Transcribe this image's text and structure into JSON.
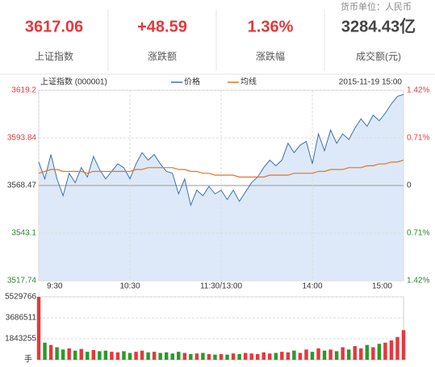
{
  "header": {
    "unit_note": "货币单位：人民币",
    "stats": [
      {
        "value": "3617.06",
        "label": "上证指数"
      },
      {
        "value": "+48.59",
        "label": "涨跌额"
      },
      {
        "value": "1.36%",
        "label": "涨跌幅"
      },
      {
        "value": "3284.43亿",
        "label": "成交额(元)"
      }
    ]
  },
  "chart_data": [
    {
      "type": "line",
      "title": "上证指数 (000001)",
      "date": "2015-11-19 15:00",
      "x": [
        0,
        4,
        8,
        12,
        16,
        20,
        24,
        28,
        32,
        36,
        40,
        44,
        48,
        52,
        56,
        60,
        64,
        68,
        72,
        76,
        80,
        84,
        88,
        92,
        96,
        100,
        104,
        108,
        112,
        116,
        120,
        124,
        128,
        132,
        136,
        140,
        144,
        148,
        152,
        156,
        160,
        164,
        168,
        172,
        176,
        180,
        184,
        188,
        192,
        196,
        200,
        204,
        208,
        212,
        216,
        220,
        224,
        228,
        232,
        236,
        240
      ],
      "xlim": [
        0,
        240
      ],
      "xticks": [
        {
          "value": 0,
          "label": "9:30"
        },
        {
          "value": 60,
          "label": "10:30"
        },
        {
          "value": 120,
          "label": "11:30/13:00"
        },
        {
          "value": 180,
          "label": "14:00"
        },
        {
          "value": 240,
          "label": "15:00"
        }
      ],
      "ylim": [
        3517.74,
        3619.2
      ],
      "yticks": [
        3619.2,
        3593.84,
        3568.47,
        3543.1,
        3517.74
      ],
      "y2lim": [
        -1.42,
        1.42
      ],
      "y2ticks": [
        {
          "value": 1.42,
          "label": "1.42%"
        },
        {
          "value": 0.71,
          "label": "0.71%"
        },
        0,
        {
          "value": -0.71,
          "label": "0.71%"
        },
        {
          "value": -1.42,
          "label": "1.42%"
        }
      ],
      "series": [
        {
          "name": "价格",
          "color": "#3f6fae",
          "values": [
            3581,
            3572,
            3585,
            3572,
            3563,
            3575,
            3570,
            3578,
            3573,
            3584,
            3577,
            3572,
            3576,
            3580,
            3578,
            3572,
            3580,
            3586,
            3582,
            3585,
            3580,
            3576,
            3575,
            3564,
            3572,
            3558,
            3566,
            3563,
            3568,
            3564,
            3566,
            3561,
            3566,
            3560,
            3565,
            3570,
            3573,
            3578,
            3582,
            3579,
            3582,
            3591,
            3586,
            3590,
            3592,
            3580,
            3596,
            3587,
            3598,
            3591,
            3596,
            3593,
            3599,
            3604,
            3600,
            3606,
            3603,
            3607,
            3612,
            3616,
            3617
          ]
        },
        {
          "name": "均线",
          "color": "#e8731e",
          "values": [
            3575,
            3576,
            3577,
            3577,
            3576,
            3576,
            3576,
            3576,
            3575,
            3576,
            3576,
            3576,
            3576,
            3576,
            3576,
            3576,
            3577,
            3577,
            3578,
            3578,
            3578,
            3578,
            3578,
            3577,
            3577,
            3576,
            3576,
            3575,
            3575,
            3574,
            3574,
            3574,
            3574,
            3573,
            3573,
            3573,
            3573,
            3573,
            3574,
            3574,
            3574,
            3574,
            3575,
            3575,
            3575,
            3575,
            3576,
            3576,
            3577,
            3577,
            3577,
            3578,
            3578,
            3578,
            3579,
            3579,
            3580,
            3580,
            3581,
            3581,
            3582
          ]
        }
      ]
    },
    {
      "type": "bar",
      "unit": "手",
      "ylim": [
        0,
        5529766
      ],
      "yticks": [
        5529766,
        3686511,
        1843255
      ],
      "values": [
        5529766,
        1500000,
        1300000,
        1100000,
        900000,
        1000000,
        800000,
        950000,
        700000,
        850000,
        750000,
        800000,
        700000,
        650000,
        750000,
        600000,
        700000,
        800000,
        650000,
        700000,
        600000,
        650000,
        550000,
        700000,
        600000,
        500000,
        550000,
        600000,
        500000,
        450000,
        500000,
        450000,
        550000,
        500000,
        600000,
        550000,
        500000,
        650000,
        550000,
        600000,
        700000,
        650000,
        800000,
        600000,
        900000,
        700000,
        1000000,
        800000,
        900000,
        750000,
        1100000,
        900000,
        1200000,
        1000000,
        1300000,
        1100000,
        1400000,
        1500000,
        1700000,
        2000000,
        2600000
      ]
    }
  ]
}
